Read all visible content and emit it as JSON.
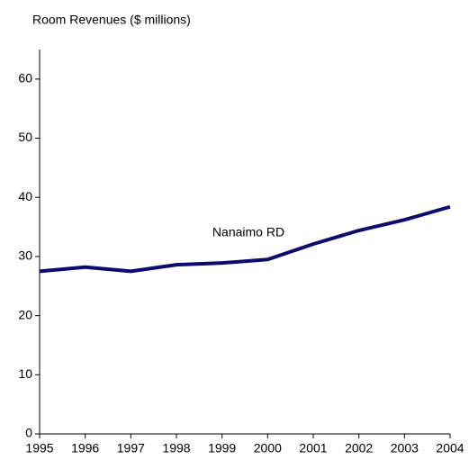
{
  "chart_data": {
    "type": "line",
    "title": "Room Revenues ($ millions)",
    "x": [
      1995,
      1996,
      1997,
      1998,
      1999,
      2000,
      2001,
      2002,
      2003,
      2004
    ],
    "xlim": [
      1995,
      2004
    ],
    "xticks": [
      1995,
      1996,
      1997,
      1998,
      1999,
      2000,
      2001,
      2002,
      2003,
      2004
    ],
    "series": [
      {
        "name": "Nanaimo RD",
        "color": "#0c0c6e",
        "values": [
          27.5,
          28.2,
          27.5,
          28.6,
          28.9,
          29.5,
          32.1,
          34.4,
          36.2,
          38.4
        ]
      }
    ],
    "ylim": [
      0,
      65
    ],
    "yticks": [
      0,
      10,
      20,
      30,
      40,
      50,
      60
    ],
    "grid": false
  }
}
